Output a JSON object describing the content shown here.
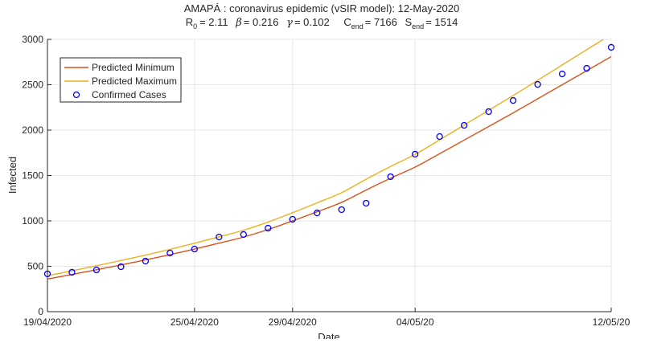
{
  "chart_data": {
    "type": "line",
    "title": "AMAPÁ : coronavirus epidemic (vSIR model): 12-May-2020",
    "subtitle": {
      "r0_label": "R",
      "r0_sub": "0",
      "r0_value": "=  2.11",
      "beta_label": "β",
      "beta_value": "=  0.216",
      "gamma_label": "γ",
      "gamma_value": "=  0.102",
      "cend_label": "C",
      "cend_sub": "end",
      "cend_value": "=  7166",
      "send_label": "S",
      "send_sub": "end",
      "send_value": "=  1514"
    },
    "xlabel": "Date",
    "ylabel": "Infected",
    "ylim": [
      0,
      3000
    ],
    "xlim_days": [
      0,
      23
    ],
    "yticks": [
      0,
      500,
      1000,
      1500,
      2000,
      2500,
      3000
    ],
    "xticks": [
      {
        "day": 0,
        "label": "19/04/2020"
      },
      {
        "day": 6,
        "label": "25/04/2020"
      },
      {
        "day": 10,
        "label": "29/04/2020"
      },
      {
        "day": 15,
        "label": "04/05/20"
      },
      {
        "day": 23,
        "label": "12/05/20"
      }
    ],
    "grid": true,
    "legend_position": "top-left",
    "series": [
      {
        "name": "Predicted Minimum",
        "style": "line",
        "color": "#D95319",
        "values": [
          360,
          410,
          462,
          515,
          570,
          628,
          690,
          755,
          822,
          905,
          1000,
          1100,
          1204,
          1340,
          1470,
          1593,
          1740,
          1890,
          2040,
          2190,
          2345,
          2500,
          2655,
          2810
        ]
      },
      {
        "name": "Predicted Maximum",
        "style": "line",
        "color": "#EDB120",
        "values": [
          396,
          450,
          506,
          564,
          623,
          686,
          754,
          824,
          897,
          987,
          1090,
          1199,
          1311,
          1459,
          1600,
          1733,
          1893,
          2056,
          2218,
          2381,
          2549,
          2718,
          2886,
          3054
        ]
      },
      {
        "name": "Confirmed Cases",
        "style": "marker",
        "color": "#0000FF",
        "values": [
          416,
          434,
          460,
          495,
          557,
          646,
          690,
          823,
          850,
          920,
          1018,
          1088,
          1124,
          1195,
          1487,
          1735,
          1929,
          2053,
          2204,
          2327,
          2504,
          2619,
          2681,
          2912
        ]
      }
    ]
  }
}
